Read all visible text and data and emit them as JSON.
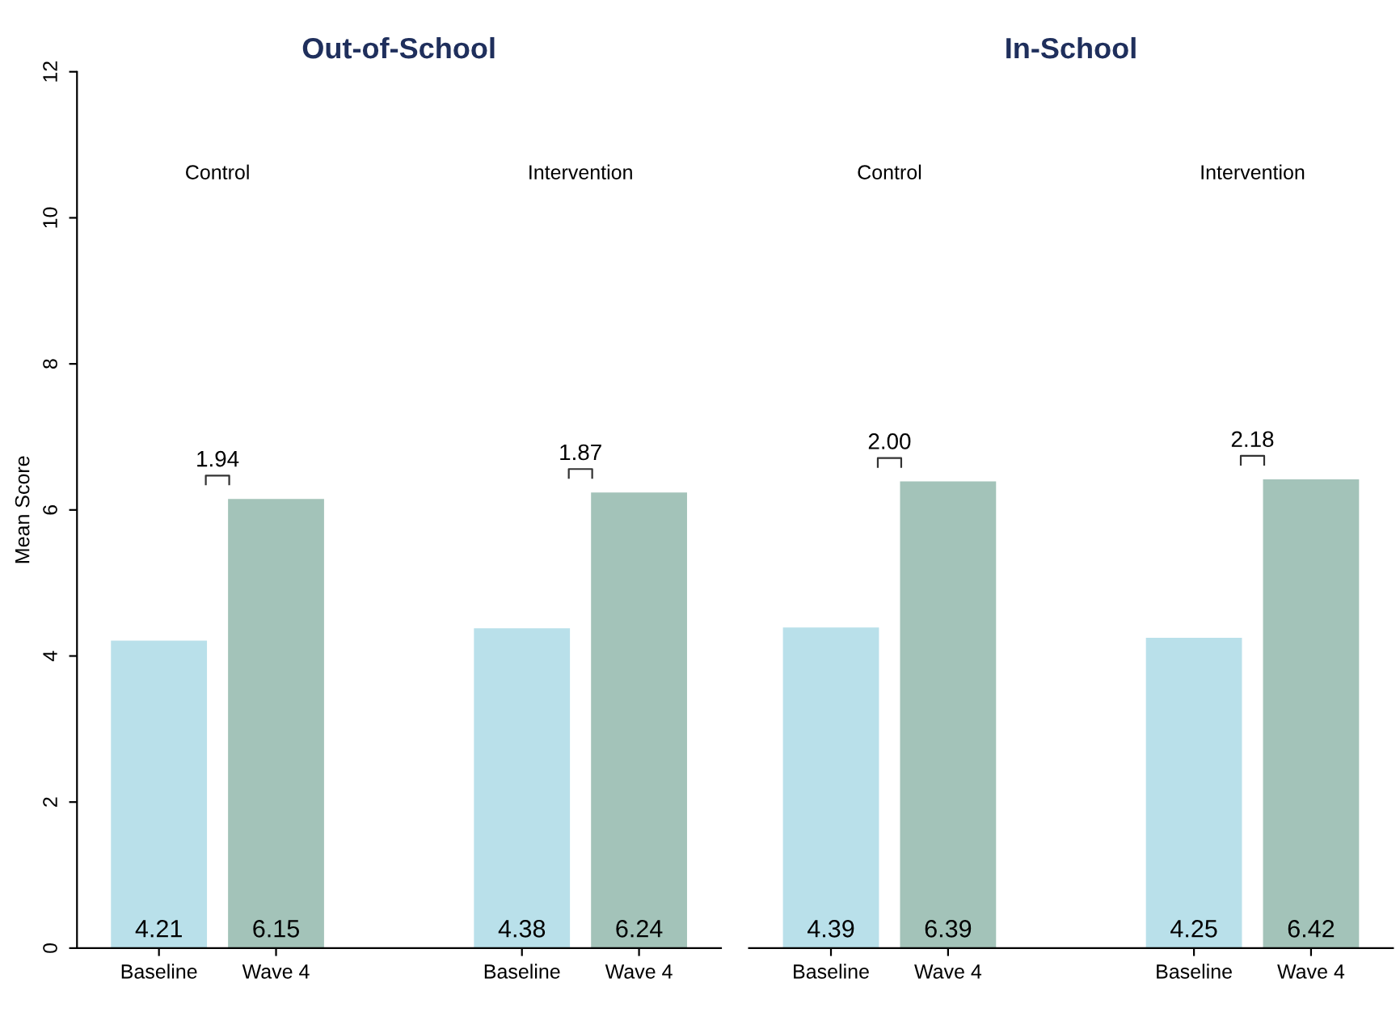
{
  "chart_data": [
    {
      "type": "bar",
      "title": "Out-of-School",
      "ylabel": "Mean Score",
      "categories": [
        "Baseline",
        "Wave 4",
        "Baseline",
        "Wave 4"
      ],
      "values": [
        4.21,
        6.15,
        4.38,
        6.24
      ],
      "colors": [
        "#b9e0ea",
        "#a3c3b9",
        "#b9e0ea",
        "#a3c3b9"
      ],
      "ylim": [
        0,
        12
      ],
      "yticks": [
        0,
        2,
        4,
        6,
        8,
        10,
        12
      ],
      "data_labels": true,
      "grid": false,
      "annotations": [
        "Control",
        "Intervention",
        "1.94",
        "1.87"
      ]
    },
    {
      "type": "bar",
      "title": "In-School",
      "categories": [
        "Baseline",
        "Wave 4",
        "Baseline",
        "Wave 4"
      ],
      "values": [
        4.39,
        6.39,
        4.25,
        6.42
      ],
      "colors": [
        "#b9e0ea",
        "#a3c3b9",
        "#b9e0ea",
        "#a3c3b9"
      ],
      "ylim": [
        0,
        12
      ],
      "yticks": [
        0,
        2,
        4,
        6,
        8,
        10,
        12
      ],
      "tick_labels": "x",
      "data_labels": true,
      "grid": false,
      "annotations": [
        "Control",
        "Intervention",
        "2.00",
        "2.18"
      ]
    }
  ]
}
